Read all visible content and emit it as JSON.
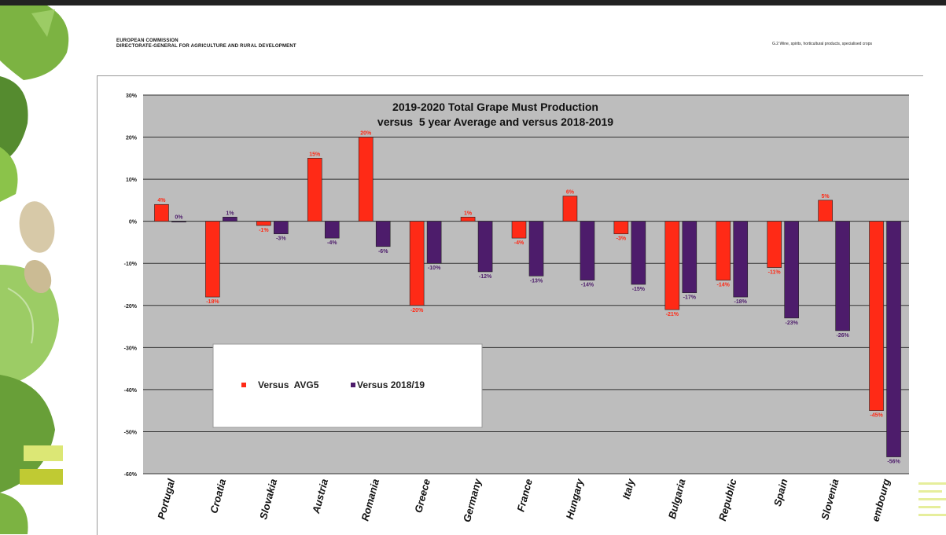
{
  "header": {
    "org_line1": "EUROPEAN COMMISSION",
    "org_line2": "DIRECTORATE-GENERAL FOR AGRICULTURE AND RURAL DEVELOPMENT",
    "unit_line": "G.2 Wine, spirits, horticultural products, specialised crops"
  },
  "colors": {
    "avg5": "#ff2a16",
    "y2018": "#4d1c6b",
    "plot_bg": "#bdbdbd",
    "leaf": "#7cb342"
  },
  "chart_data": {
    "type": "bar",
    "title_line1": "2019-2020 Total Grape Must Production",
    "title_line2": "versus  5 year Average and versus 2018-2019",
    "categories": [
      "Portugal",
      "Croatia",
      "Slovakia",
      "Austria",
      "Romania",
      "Greece",
      "Germany",
      "France",
      "Hungary",
      "Italy",
      "Bulgaria",
      "Republic",
      "Spain",
      "Slovenia",
      "embourg"
    ],
    "series": [
      {
        "name": "Versus  AVG5",
        "values": [
          4,
          -18,
          -1,
          15,
          20,
          -20,
          1,
          -4,
          6,
          -3,
          -21,
          -14,
          -11,
          5,
          -45
        ],
        "labels": [
          "4%",
          "-18%",
          "-1%",
          "15%",
          "20%",
          "-20%",
          "1%",
          "-4%",
          "6%",
          "-3%",
          "-21%",
          "-14%",
          "-11%",
          "5%",
          "-45%"
        ]
      },
      {
        "name": "Versus 2018/19",
        "values": [
          0,
          1,
          -3,
          -4,
          -6,
          -10,
          -12,
          -13,
          -14,
          -15,
          -17,
          -18,
          -23,
          -26,
          -56
        ],
        "labels": [
          "0%",
          "1%",
          "-3%",
          "-4%",
          "-6%",
          "-10%",
          "-12%",
          "-13%",
          "-14%",
          "-15%",
          "-17%",
          "-18%",
          "-23%",
          "-26%",
          "-56%"
        ]
      }
    ],
    "ylim": [
      -60,
      30
    ],
    "yticks": [
      30,
      20,
      10,
      0,
      -10,
      -20,
      -30,
      -40,
      -50,
      -60
    ],
    "ytick_labels": [
      "30%",
      "20%",
      "10%",
      "0%",
      "-10%",
      "-20%",
      "-30%",
      "-40%",
      "-50%",
      "-60%"
    ],
    "grid": true,
    "legend_position": "lower-left"
  }
}
